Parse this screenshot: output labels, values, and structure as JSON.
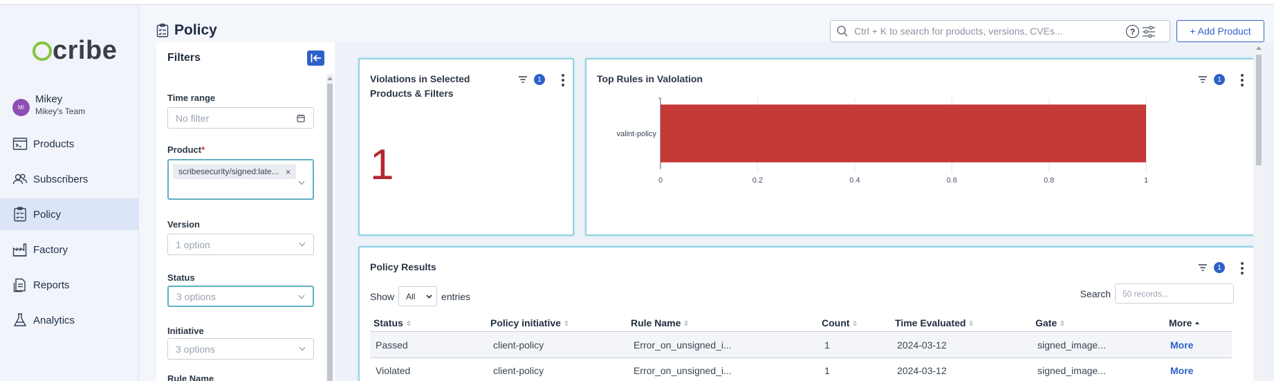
{
  "brand": {
    "logo_text": "cribe",
    "logo_s": "s"
  },
  "user": {
    "initials": "MI",
    "name": "Mikey",
    "team": "Mikey's Team"
  },
  "nav": [
    {
      "label": "Products",
      "icon": "products-icon",
      "active": false
    },
    {
      "label": "Subscribers",
      "icon": "subscribers-icon",
      "active": false
    },
    {
      "label": "Policy",
      "icon": "policy-icon",
      "active": true
    },
    {
      "label": "Factory",
      "icon": "factory-icon",
      "active": false
    },
    {
      "label": "Reports",
      "icon": "reports-icon",
      "active": false
    },
    {
      "label": "Analytics",
      "icon": "analytics-icon",
      "active": false
    }
  ],
  "header": {
    "title": "Policy",
    "search_placeholder": "Ctrl + K to search for products, versions, CVEs...",
    "help": "?",
    "add_button": "+ Add Product"
  },
  "filters": {
    "title": "Filters",
    "time_range": {
      "label": "Time range",
      "value": "No filter"
    },
    "product": {
      "label": "Product",
      "required": "*",
      "chip": "scribesecurity/signed:late...",
      "chip_close": "×"
    },
    "version": {
      "label": "Version",
      "value": "1 option"
    },
    "status": {
      "label": "Status",
      "value": "3 options"
    },
    "initiative": {
      "label": "Initiative",
      "value": "3 options"
    },
    "rule_name": {
      "label": "Rule Name"
    }
  },
  "violations_card": {
    "title_line1": "Violations in Selected",
    "title_line2": "Products & Filters",
    "filter_count": "1",
    "value": "1"
  },
  "top_rules_card": {
    "title": "Top Rules in Valolation",
    "filter_count": "1"
  },
  "chart_data": {
    "type": "bar",
    "orientation": "horizontal",
    "categories": [
      "valint-policy"
    ],
    "values": [
      1
    ],
    "xlim": [
      0,
      1
    ],
    "xticks": [
      "0",
      "0.2",
      "0.4",
      "0.6",
      "0.8",
      "1"
    ],
    "color": "#c43a36",
    "grid": true
  },
  "results_card": {
    "title": "Policy Results",
    "filter_count": "1",
    "show_label": "Show",
    "show_value": "All",
    "entries_label": "entries",
    "search_label": "Search",
    "search_placeholder": "50 records...",
    "columns": [
      "Status",
      "Policy initiative",
      "Rule Name",
      "Count",
      "Time Evaluated",
      "Gate",
      "More"
    ],
    "rows": [
      [
        "Passed",
        "client-policy",
        "Error_on_unsigned_i...",
        "1",
        "2024-03-12",
        "signed_image...",
        "More"
      ],
      [
        "Violated",
        "client-policy",
        "Error_on_unsigned_i...",
        "1",
        "2024-03-12",
        "signed_image...",
        "More"
      ]
    ]
  },
  "colors": {
    "accent": "#2e60c9",
    "violation_red": "#b5282d",
    "focus_border": "#5fb0c4"
  }
}
